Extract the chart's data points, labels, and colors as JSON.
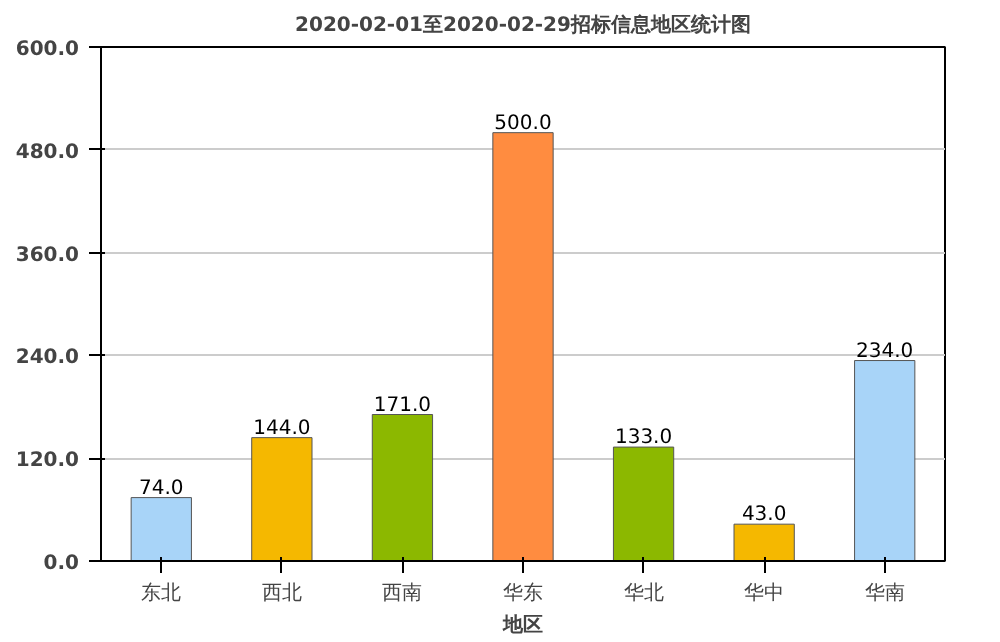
{
  "chart_data": {
    "type": "bar",
    "title": "2020-02-01至2020-02-29招标信息地区统计图",
    "xlabel": "地区",
    "categories": [
      "东北",
      "西北",
      "西南",
      "华东",
      "华北",
      "华中",
      "华南"
    ],
    "values": [
      74,
      144,
      171,
      500,
      133,
      43,
      234
    ],
    "colors": [
      "#a8d4f8",
      "#f5b800",
      "#8cb800",
      "#ff8c40",
      "#8cb800",
      "#f5b800",
      "#a8d4f8"
    ],
    "value_labels": [
      "74.0",
      "144.0",
      "171.0",
      "500.0",
      "133.0",
      "43.0",
      "234.0"
    ],
    "ylim": [
      0,
      600
    ],
    "yticks": [
      {
        "value": 0,
        "label": "0.0"
      },
      {
        "value": 120,
        "label": "120.0"
      },
      {
        "value": 240,
        "label": "240.0"
      },
      {
        "value": 360,
        "label": "360.0"
      },
      {
        "value": 480,
        "label": "480.0"
      },
      {
        "value": 600,
        "label": "600.0"
      }
    ],
    "grid": "y"
  }
}
